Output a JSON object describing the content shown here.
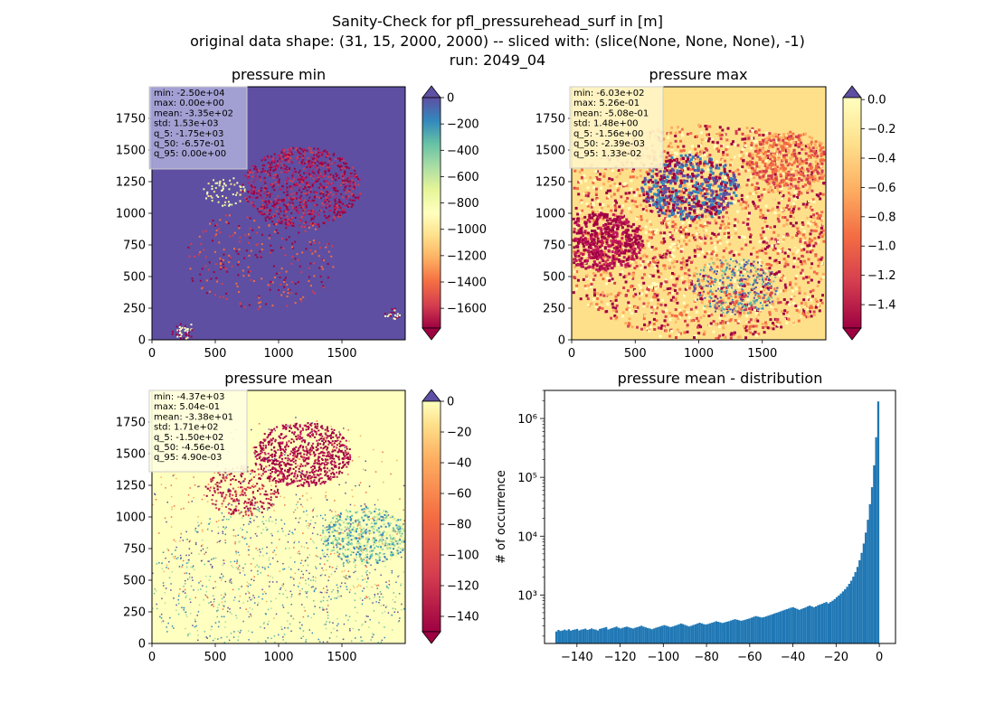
{
  "figure": {
    "suptitle": [
      "Sanity-Check for pfl_pressurehead_surf in [m]",
      "original data shape: (31, 15, 2000, 2000) -- sliced with: (slice(None, None, None), -1)",
      "run: 2049_04"
    ]
  },
  "chart_data": [
    {
      "type": "heatmap",
      "title": "pressure min",
      "colormap": "Spectral",
      "xlim": [
        0,
        2000
      ],
      "ylim": [
        0,
        2000
      ],
      "x_ticks": [
        0,
        500,
        1000,
        1500
      ],
      "y_ticks": [
        0,
        250,
        500,
        750,
        1000,
        1250,
        1500,
        1750
      ],
      "colorbar": {
        "vmin": -1750,
        "vmax": 0,
        "ticks": [
          0,
          -200,
          -400,
          -600,
          -800,
          -1000,
          -1200,
          -1400,
          -1600
        ],
        "tick_labels": [
          "0",
          "−200",
          "−400",
          "−600",
          "−800",
          "−1000",
          "−1200",
          "−1400",
          "−1600"
        ],
        "extend": "both"
      },
      "stats": [
        "min: -2.50e+04",
        "max: 0.00e+00",
        "mean: -3.35e+02",
        "std: 1.53e+03",
        "q_5: -1.75e+03",
        "q_50: -6.57e-01",
        "q_95: 0.00e+00"
      ],
      "background": "#5e4fa2",
      "stats_box": "#aaa8d8"
    },
    {
      "type": "heatmap",
      "title": "pressure max",
      "colormap": "Spectral",
      "xlim": [
        0,
        2000
      ],
      "ylim": [
        0,
        2000
      ],
      "x_ticks": [
        0,
        500,
        1000,
        1500
      ],
      "y_ticks": [
        0,
        250,
        500,
        750,
        1000,
        1250,
        1500,
        1750
      ],
      "colorbar": {
        "vmin": -1.56,
        "vmax": 0.0133,
        "ticks": [
          0.0,
          -0.2,
          -0.4,
          -0.6,
          -0.8,
          -1.0,
          -1.2,
          -1.4
        ],
        "tick_labels": [
          "0.0",
          "−0.2",
          "−0.4",
          "−0.6",
          "−0.8",
          "−1.0",
          "−1.2",
          "−1.4"
        ],
        "extend": "both"
      },
      "stats": [
        "min: -6.03e+02",
        "max: 5.26e-01",
        "mean: -5.08e-01",
        "std: 1.48e+00",
        "q_5: -1.56e+00",
        "q_50: -2.39e-03",
        "q_95: 1.33e-02"
      ],
      "background": "#fee08b",
      "stats_box": "#fff5c8"
    },
    {
      "type": "heatmap",
      "title": "pressure mean",
      "colormap": "Spectral",
      "xlim": [
        0,
        2000
      ],
      "ylim": [
        0,
        2000
      ],
      "x_ticks": [
        0,
        500,
        1000,
        1500
      ],
      "y_ticks": [
        0,
        250,
        500,
        750,
        1000,
        1250,
        1500,
        1750
      ],
      "colorbar": {
        "vmin": -150,
        "vmax": 0.0049,
        "ticks": [
          0,
          -20,
          -40,
          -60,
          -80,
          -100,
          -120,
          -140
        ],
        "tick_labels": [
          "0",
          "−20",
          "−40",
          "−60",
          "−80",
          "−100",
          "−120",
          "−140"
        ],
        "extend": "both"
      },
      "stats": [
        "min: -4.37e+03",
        "max: 5.04e-01",
        "mean: -3.38e+01",
        "std: 1.71e+02",
        "q_5: -1.50e+02",
        "q_50: -4.56e-01",
        "q_95: 4.90e-03"
      ],
      "background": "#ffffbf",
      "stats_box": "#ffffe0"
    },
    {
      "type": "bar",
      "title": "pressure mean - distribution",
      "ylabel": "# of occurrence",
      "xlabel": "",
      "yscale": "log",
      "xlim": [
        -155,
        7.5
      ],
      "ylim": [
        150,
        3000000
      ],
      "x_ticks": [
        -140,
        -120,
        -100,
        -80,
        -60,
        -40,
        -20,
        0
      ],
      "x_tick_labels": [
        "−140",
        "−120",
        "−100",
        "−80",
        "−60",
        "−40",
        "−20",
        "0"
      ],
      "y_ticks": [
        1000,
        10000,
        100000,
        1000000
      ],
      "y_tick_labels": [
        "10³",
        "10⁴",
        "10⁵",
        "10⁶"
      ],
      "bin_range": [
        -150,
        0
      ],
      "color": "#1f77b4",
      "values": [
        240,
        255,
        245,
        250,
        258,
        250,
        262,
        248,
        255,
        260,
        265,
        250,
        258,
        262,
        268,
        255,
        262,
        270,
        262,
        258,
        250,
        266,
        272,
        278,
        285,
        260,
        268,
        275,
        282,
        290,
        278,
        270,
        278,
        285,
        290,
        282,
        275,
        270,
        278,
        285,
        292,
        300,
        290,
        282,
        275,
        270,
        262,
        270,
        278,
        285,
        292,
        300,
        308,
        300,
        292,
        285,
        292,
        300,
        308,
        318,
        328,
        320,
        310,
        300,
        292,
        300,
        310,
        318,
        328,
        338,
        330,
        320,
        315,
        322,
        330,
        338,
        348,
        358,
        350,
        342,
        335,
        342,
        350,
        358,
        368,
        378,
        388,
        380,
        372,
        365,
        372,
        380,
        390,
        400,
        412,
        425,
        438,
        430,
        422,
        415,
        422,
        432,
        445,
        458,
        470,
        485,
        498,
        512,
        528,
        544,
        560,
        575,
        590,
        610,
        620,
        600,
        580,
        560,
        578,
        596,
        615,
        640,
        660,
        640,
        620,
        640,
        670,
        690,
        710,
        735,
        760,
        720,
        760,
        800,
        850,
        920,
        980,
        1060,
        1150,
        1250,
        1380,
        1550,
        1750,
        2050,
        2450,
        3000,
        3900,
        5200,
        7500,
        11500,
        19000,
        35000,
        68000,
        160000,
        480000,
        1950000
      ]
    }
  ]
}
